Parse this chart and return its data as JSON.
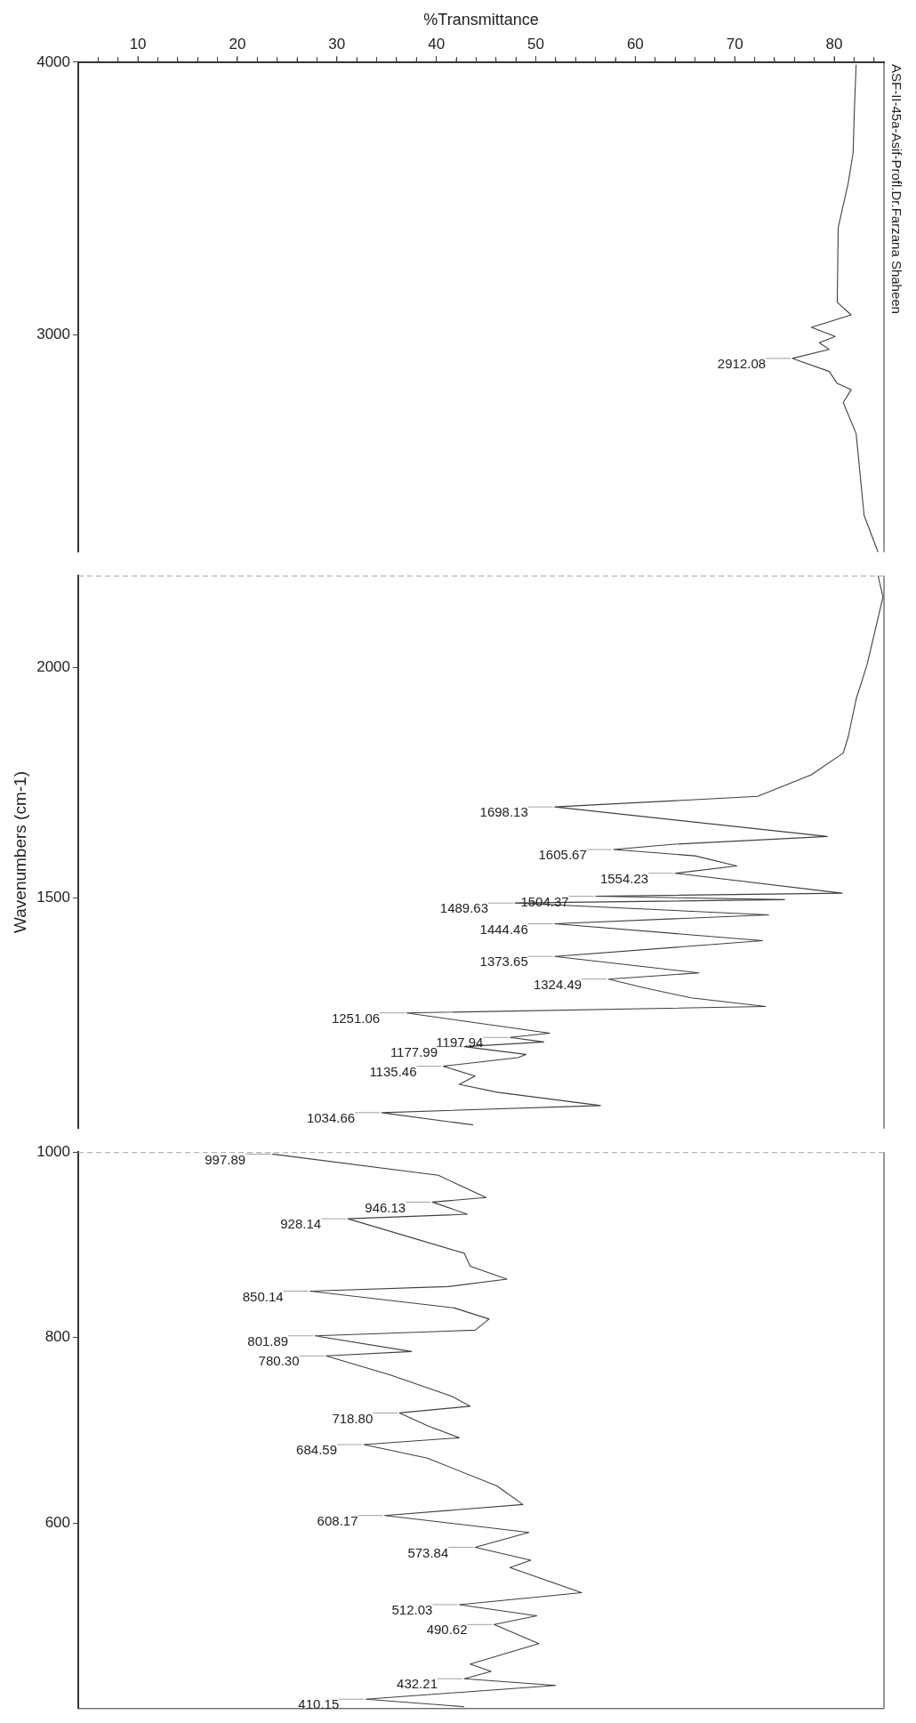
{
  "chart_data": [
    {
      "type": "line",
      "orientation": "horizontal",
      "title": "ASF-II-45a-Asif-Profl.Dr.Farzana Shaheen",
      "xlabel": "%Transmittance",
      "marker": "none",
      "line_style": "solid",
      "legend": false,
      "x": [
        3991,
        3800,
        3669,
        3555,
        3393,
        3118,
        3072,
        3026,
        2993,
        2970,
        2945,
        2912.08,
        2864,
        2820,
        2797,
        2750,
        2636,
        2336,
        2200
      ],
      "series": [
        {
          "color": "#404040",
          "values": [
            82.2,
            82.0,
            81.9,
            81.4,
            80.4,
            80.3,
            81.7,
            77.7,
            80.1,
            78.5,
            79.5,
            75.8,
            79.5,
            80.3,
            81.7,
            80.9,
            82.2,
            83.0,
            84.4
          ]
        }
      ],
      "xlim": [
        4,
        85
      ],
      "xticks": [
        {
          "value": 6,
          "label": null
        },
        {
          "value": 8,
          "label": null
        },
        10,
        {
          "value": 12,
          "label": null
        },
        {
          "value": 14,
          "label": null
        },
        {
          "value": 16,
          "label": null
        },
        {
          "value": 18,
          "label": null
        },
        20,
        {
          "value": 22,
          "label": null
        },
        {
          "value": 24,
          "label": null
        },
        {
          "value": 26,
          "label": null
        },
        {
          "value": 28,
          "label": null
        },
        30,
        {
          "value": 32,
          "label": null
        },
        {
          "value": 34,
          "label": null
        },
        {
          "value": 36,
          "label": null
        },
        {
          "value": 38,
          "label": null
        },
        40,
        {
          "value": 42,
          "label": null
        },
        {
          "value": 44,
          "label": null
        },
        {
          "value": 46,
          "label": null
        },
        {
          "value": 48,
          "label": null
        },
        50,
        {
          "value": 52,
          "label": null
        },
        {
          "value": 54,
          "label": null
        },
        {
          "value": 56,
          "label": null
        },
        {
          "value": 58,
          "label": null
        },
        60,
        {
          "value": 62,
          "label": null
        },
        {
          "value": 64,
          "label": null
        },
        {
          "value": 66,
          "label": null
        },
        {
          "value": 68,
          "label": null
        },
        70,
        {
          "value": 72,
          "label": null
        },
        {
          "value": 74,
          "label": null
        },
        {
          "value": 76,
          "label": null
        },
        {
          "value": 78,
          "label": null
        },
        80,
        {
          "value": 82,
          "label": null
        },
        {
          "value": 84,
          "label": null
        }
      ],
      "ylim": [
        2200,
        4000
      ],
      "yticks": [
        4000,
        3000
      ],
      "annotations": [
        {
          "text": "2912.08",
          "y": 2912.08,
          "x": 75.8
        }
      ]
    },
    {
      "type": "line",
      "orientation": "horizontal",
      "ylabel": "Wavenumbers (cm-1)",
      "marker": "none",
      "line_style": "solid",
      "legend": false,
      "tick_labels": "y",
      "x": [
        2200,
        2154,
        2007,
        1932,
        1850,
        1815,
        1768,
        1721,
        1698.13,
        1634,
        1617,
        1605.67,
        1592,
        1570,
        1554.23,
        1511,
        1504.37,
        1497,
        1489.63,
        1464,
        1444.46,
        1408,
        1373.65,
        1338,
        1324.49,
        1305,
        1284,
        1265,
        1251.06,
        1207,
        1197.94,
        1188,
        1177.99,
        1161,
        1154,
        1135.46,
        1114,
        1096,
        1079,
        1050,
        1034.66,
        1008
      ],
      "series": [
        {
          "color": "#404040",
          "values": [
            84.4,
            84.9,
            83.3,
            82.2,
            81.4,
            80.9,
            77.7,
            72.3,
            51.9,
            79.3,
            63.7,
            57.8,
            66,
            70.2,
            64.0,
            80.8,
            56.0,
            75,
            47.9,
            73.4,
            51.9,
            72.8,
            51.9,
            66.4,
            57.3,
            61,
            65.6,
            73.1,
            37.0,
            51.4,
            47.4,
            50.8,
            42.8,
            49.0,
            48.2,
            40.7,
            43.9,
            42.3,
            46.1,
            56.5,
            34.5,
            43.7
          ]
        }
      ],
      "xlim": [
        4,
        85
      ],
      "ylim": [
        1000,
        2200
      ],
      "yticks": [
        2000,
        1500
      ],
      "annotations": [
        {
          "text": "1698.13",
          "y": 1698.13,
          "x": 51.9
        },
        {
          "text": "1605.67",
          "y": 1605.67,
          "x": 57.8
        },
        {
          "text": "1554.23",
          "y": 1554.23,
          "x": 64.0
        },
        {
          "text": "1504.37",
          "y": 1504.37,
          "x": 56.0
        },
        {
          "text": "1489.63",
          "y": 1489.63,
          "x": 47.9
        },
        {
          "text": "1444.46",
          "y": 1444.46,
          "x": 51.9
        },
        {
          "text": "1373.65",
          "y": 1373.65,
          "x": 51.9
        },
        {
          "text": "1324.49",
          "y": 1324.49,
          "x": 57.3
        },
        {
          "text": "1251.06",
          "y": 1251.06,
          "x": 37.0
        },
        {
          "text": "1197.94",
          "y": 1197.94,
          "x": 47.4
        },
        {
          "text": "1177.99",
          "y": 1177.99,
          "x": 42.8
        },
        {
          "text": "1135.46",
          "y": 1135.46,
          "x": 40.7
        },
        {
          "text": "1034.66",
          "y": 1034.66,
          "x": 34.5
        }
      ]
    },
    {
      "type": "line",
      "orientation": "horizontal",
      "marker": "none",
      "line_style": "solid",
      "legend": false,
      "tick_labels": "y",
      "x": [
        997.89,
        975,
        951,
        946.13,
        933,
        928.14,
        891,
        877,
        863,
        855,
        850.14,
        832,
        820,
        808,
        801.89,
        785,
        780.3,
        760,
        737,
        726,
        718.8,
        705,
        692,
        684.59,
        670,
        640,
        620,
        608.17,
        590,
        573.84,
        560,
        552,
        525,
        512.03,
        500,
        490.62,
        470,
        448,
        440,
        432.21,
        425,
        410.15,
        402
      ],
      "series": [
        {
          "color": "#404040",
          "values": [
            23.5,
            40.2,
            45.0,
            39.6,
            43.1,
            31.1,
            42.8,
            43.4,
            47.1,
            41.2,
            27.3,
            41.8,
            45.3,
            43.9,
            27.8,
            37.5,
            28.9,
            35.3,
            41.5,
            43.4,
            36.3,
            39.1,
            42.3,
            32.7,
            39.1,
            46.1,
            48.7,
            34.8,
            49.3,
            43.9,
            49.5,
            47.4,
            54.6,
            42.3,
            50.1,
            45.8,
            50.3,
            43.4,
            45.5,
            42.8,
            52.0,
            32.9,
            42.8
          ]
        }
      ],
      "xlim": [
        4,
        85
      ],
      "ylim": [
        400,
        1000
      ],
      "yticks": [
        1000,
        800,
        600
      ],
      "annotations": [
        {
          "text": "997.89",
          "y": 997.89,
          "x": 23.5
        },
        {
          "text": "946.13",
          "y": 946.13,
          "x": 39.6
        },
        {
          "text": "928.14",
          "y": 928.14,
          "x": 31.1
        },
        {
          "text": "850.14",
          "y": 850.14,
          "x": 27.3
        },
        {
          "text": "801.89",
          "y": 801.89,
          "x": 27.8
        },
        {
          "text": "780.30",
          "y": 780.3,
          "x": 28.9
        },
        {
          "text": "718.80",
          "y": 718.8,
          "x": 36.3
        },
        {
          "text": "684.59",
          "y": 684.59,
          "x": 32.7
        },
        {
          "text": "608.17",
          "y": 608.17,
          "x": 34.8
        },
        {
          "text": "573.84",
          "y": 573.84,
          "x": 43.9
        },
        {
          "text": "512.03",
          "y": 512.03,
          "x": 42.3
        },
        {
          "text": "490.62",
          "y": 490.62,
          "x": 45.8
        },
        {
          "text": "432.21",
          "y": 432.21,
          "x": 42.8
        },
        {
          "text": "410.15",
          "y": 410.15,
          "x": 32.9
        }
      ]
    }
  ]
}
